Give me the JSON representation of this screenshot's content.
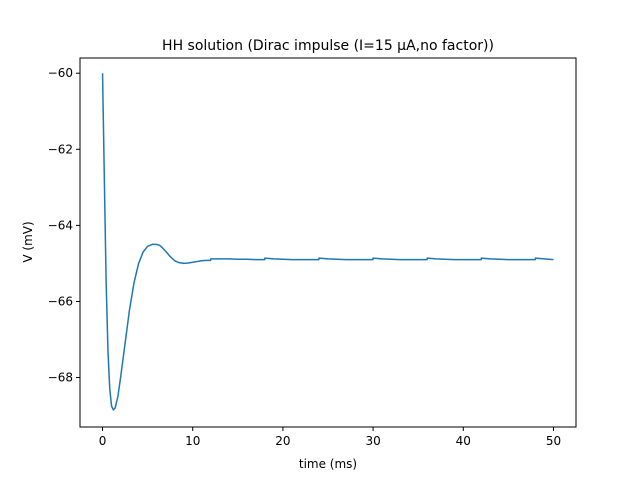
{
  "chart_data": {
    "type": "line",
    "title": "HH solution (Dirac impulse (I=15 μA,no factor))",
    "xlabel": "time (ms)",
    "ylabel": "V (mV)",
    "xlim": [
      -2.5,
      52.5
    ],
    "ylim": [
      -69.3,
      -59.6
    ],
    "xticks": [
      0,
      10,
      20,
      30,
      40,
      50
    ],
    "yticks": [
      -68,
      -66,
      -64,
      -62,
      -60
    ],
    "xtick_labels": [
      "0",
      "10",
      "20",
      "30",
      "40",
      "50"
    ],
    "ytick_labels": [
      "−68",
      "−66",
      "−64",
      "−62",
      "−60"
    ],
    "grid": false,
    "series": [
      {
        "color": "#1f77b4",
        "x": [
          0,
          0.2,
          0.4,
          0.6,
          0.8,
          1.0,
          1.2,
          1.4,
          1.7,
          2.0,
          2.5,
          3.0,
          3.5,
          4.0,
          4.5,
          5.0,
          5.5,
          6.0,
          6.3,
          6.6,
          7.0,
          7.5,
          8.0,
          8.5,
          9.0,
          9.5,
          10.0,
          10.5,
          11.0,
          11.5,
          11.99,
          12.0,
          13,
          14,
          15,
          16,
          17,
          17.99,
          18.0,
          19,
          20,
          21,
          22,
          23,
          23.99,
          24.0,
          25,
          26,
          27,
          28,
          29,
          29.99,
          30.0,
          31,
          32,
          33,
          34,
          35,
          35.99,
          36.0,
          37,
          38,
          39,
          40,
          41,
          41.99,
          42.0,
          43,
          44,
          45,
          46,
          47,
          47.99,
          48.0,
          49,
          50
        ],
        "y": [
          -60.0,
          -62.8,
          -65.5,
          -67.3,
          -68.3,
          -68.75,
          -68.85,
          -68.8,
          -68.5,
          -68.0,
          -67.1,
          -66.2,
          -65.5,
          -65.0,
          -64.7,
          -64.55,
          -64.5,
          -64.5,
          -64.52,
          -64.58,
          -64.68,
          -64.82,
          -64.93,
          -64.98,
          -65.0,
          -64.99,
          -64.97,
          -64.95,
          -64.93,
          -64.92,
          -64.92,
          -64.88,
          -64.88,
          -64.88,
          -64.89,
          -64.89,
          -64.9,
          -64.9,
          -64.86,
          -64.88,
          -64.89,
          -64.9,
          -64.9,
          -64.9,
          -64.9,
          -64.86,
          -64.88,
          -64.89,
          -64.9,
          -64.9,
          -64.9,
          -64.9,
          -64.86,
          -64.88,
          -64.89,
          -64.9,
          -64.9,
          -64.9,
          -64.9,
          -64.86,
          -64.88,
          -64.89,
          -64.9,
          -64.9,
          -64.9,
          -64.9,
          -64.86,
          -64.88,
          -64.89,
          -64.9,
          -64.9,
          -64.9,
          -64.9,
          -64.86,
          -64.88,
          -64.9
        ]
      }
    ]
  }
}
